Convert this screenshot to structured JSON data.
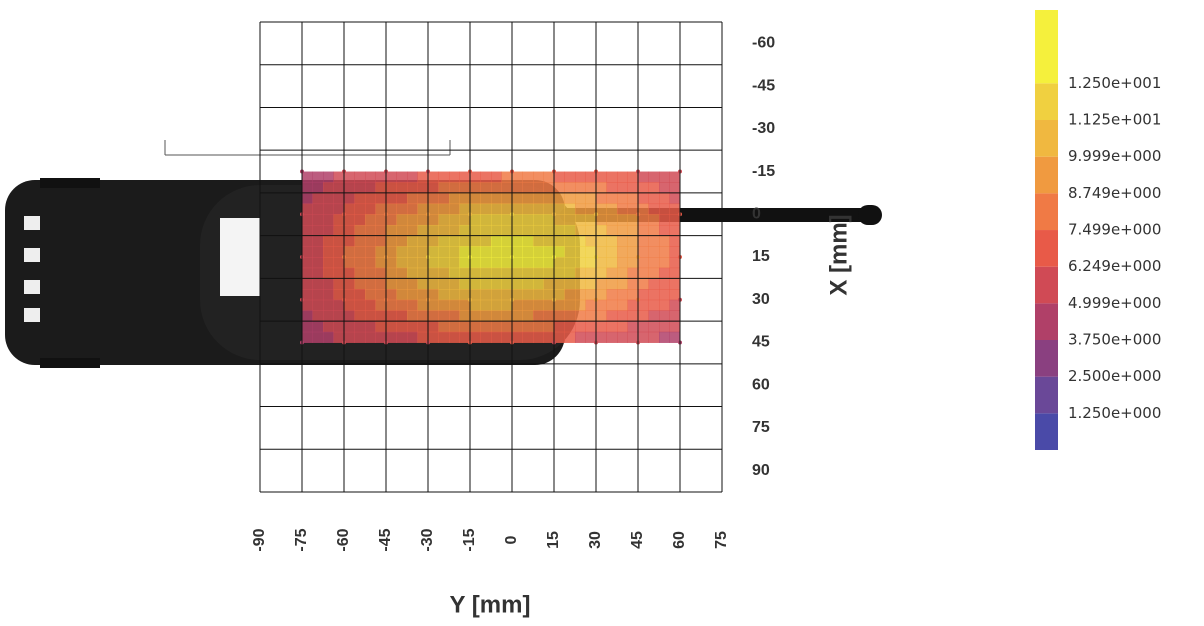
{
  "chart_data": {
    "type": "heatmap",
    "xlabel": "Y [mm]",
    "ylabel": "X [mm]",
    "xlim": [
      -90,
      75
    ],
    "xticks": [
      -90,
      -75,
      -60,
      -45,
      -30,
      -15,
      0,
      15,
      30,
      45,
      60,
      75
    ],
    "ylim": [
      -67.5,
      97.5
    ],
    "yticks": [
      -60,
      -45,
      -30,
      -15,
      0,
      15,
      30,
      45,
      60,
      75,
      90
    ],
    "grid": true,
    "x": [
      -75,
      -60,
      -45,
      -30,
      -15,
      0,
      15,
      30,
      45,
      60
    ],
    "y": [
      -15,
      0,
      15,
      30,
      45
    ],
    "z": [
      [
        4,
        5,
        5.5,
        6,
        6.5,
        7,
        7,
        6.5,
        6,
        5
      ],
      [
        5,
        6.5,
        8,
        9.5,
        11,
        11.5,
        11,
        10,
        8.5,
        6.5
      ],
      [
        5.5,
        7.5,
        9.5,
        11.5,
        13,
        13.5,
        13,
        11.5,
        9,
        7
      ],
      [
        5,
        6.5,
        8,
        9.5,
        10.5,
        10.5,
        10,
        9,
        7.5,
        6
      ],
      [
        4,
        5,
        5.5,
        6,
        6.5,
        6.5,
        6,
        5.5,
        5,
        4.5
      ]
    ],
    "clim": [
      0,
      15
    ],
    "levels": [
      {
        "value": 12.5,
        "label": "1.250e+001"
      },
      {
        "value": 11.25,
        "label": "1.125e+001"
      },
      {
        "value": 9.999,
        "label": "9.999e+000"
      },
      {
        "value": 8.749,
        "label": "8.749e+000"
      },
      {
        "value": 7.499,
        "label": "7.499e+000"
      },
      {
        "value": 6.249,
        "label": "6.249e+000"
      },
      {
        "value": 4.999,
        "label": "4.999e+000"
      },
      {
        "value": 3.75,
        "label": "3.750e+000"
      },
      {
        "value": 2.5,
        "label": "2.500e+000"
      },
      {
        "value": 1.25,
        "label": "1.250e+000"
      }
    ],
    "colors": [
      "#4a4aa8",
      "#6a4898",
      "#8a4080",
      "#b04068",
      "#d04a55",
      "#e85a48",
      "#f07a45",
      "#f09a40",
      "#f0b840",
      "#f0d040",
      "#f5f03c"
    ]
  }
}
